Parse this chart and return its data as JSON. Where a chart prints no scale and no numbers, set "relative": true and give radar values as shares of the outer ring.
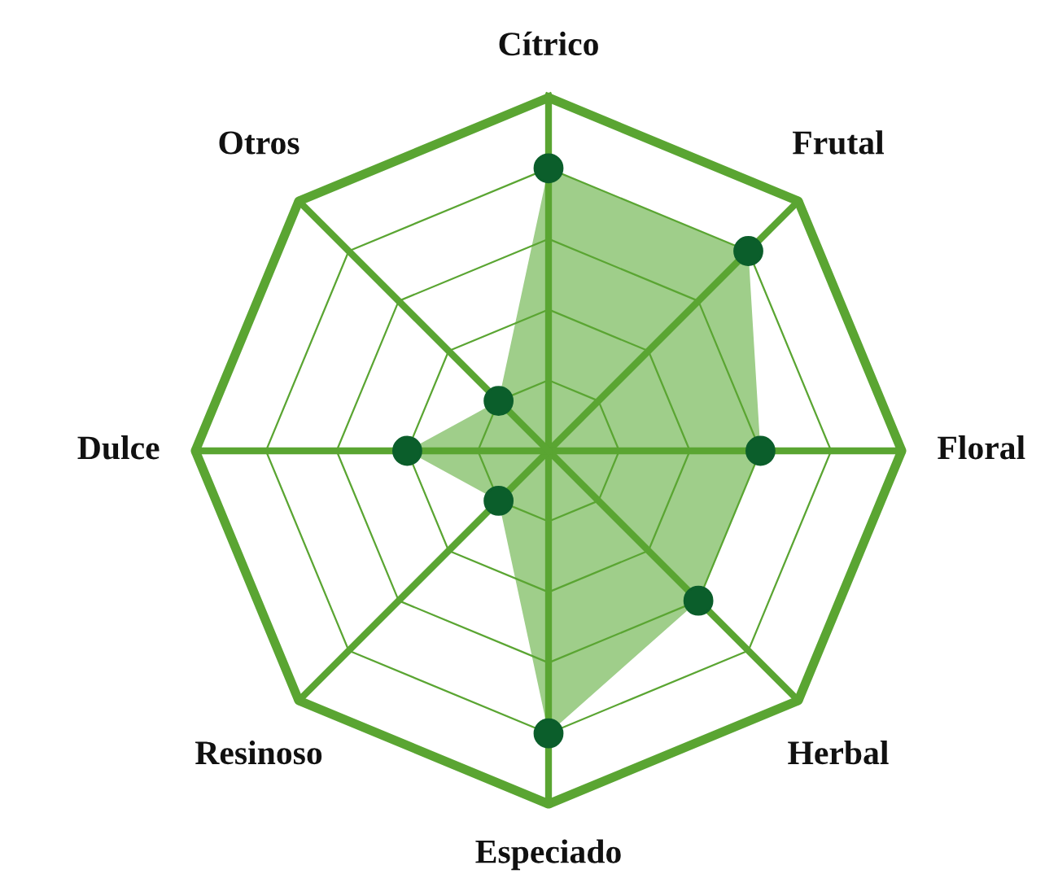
{
  "chart_data": {
    "type": "radar",
    "categories": [
      "Cítrico",
      "Frutal",
      "Floral",
      "Herbal",
      "Especiado",
      "Resinoso",
      "Dulce",
      "Otros"
    ],
    "relative": true,
    "grid": true,
    "marker": "circle",
    "series": [
      {
        "color": "#9fce8a",
        "values": [
          0.8,
          0.8,
          0.6,
          0.6,
          0.8,
          0.2,
          0.4,
          0.2
        ]
      }
    ]
  }
}
